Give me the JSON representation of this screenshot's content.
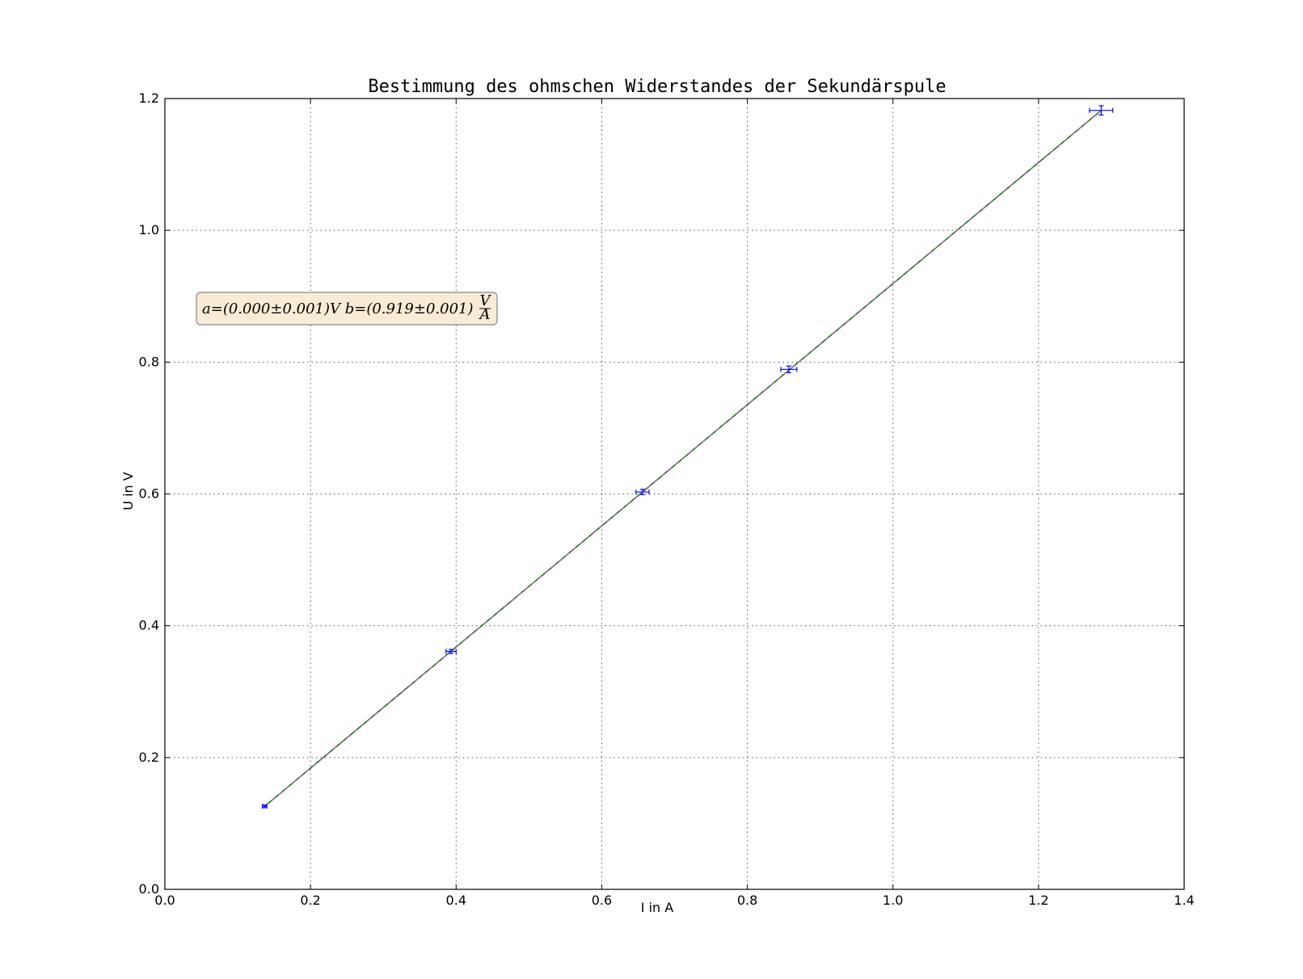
{
  "chart_data": {
    "type": "scatter",
    "title": "Bestimmung des ohmschen Widerstandes der Sekundärspule",
    "xlabel": "I in A",
    "ylabel": "U in V",
    "xlim": [
      0.0,
      1.4
    ],
    "ylim": [
      0.0,
      1.2
    ],
    "xticks": [
      "0.0",
      "0.2",
      "0.4",
      "0.6",
      "0.8",
      "1.0",
      "1.2",
      "1.4"
    ],
    "yticks": [
      "0.0",
      "0.2",
      "0.4",
      "0.6",
      "0.8",
      "1.0",
      "1.2"
    ],
    "grid": true,
    "series": [
      {
        "kind": "errorbar",
        "color": "#0000ff",
        "x": [
          0.137,
          0.393,
          0.656,
          0.857,
          1.286
        ],
        "y": [
          0.126,
          0.361,
          0.603,
          0.789,
          1.182
        ],
        "xerr": [
          0.003,
          0.007,
          0.009,
          0.011,
          0.016
        ],
        "yerr": [
          0.002,
          0.003,
          0.004,
          0.005,
          0.007
        ]
      },
      {
        "kind": "fit-line",
        "color": "#008000",
        "x": [
          0.137,
          1.286
        ],
        "y": [
          0.126,
          1.182
        ]
      },
      {
        "kind": "dashed-line",
        "color": "#cc44cc",
        "x": [
          0.137,
          1.286
        ],
        "y": [
          0.126,
          1.182
        ]
      }
    ],
    "annotation": {
      "text": "a=(0.000±0.001)V    b=(0.919±0.001)",
      "unit_num": "V",
      "unit_den": "A",
      "box_fill": "#faebd7",
      "box_stroke": "#888888"
    }
  }
}
